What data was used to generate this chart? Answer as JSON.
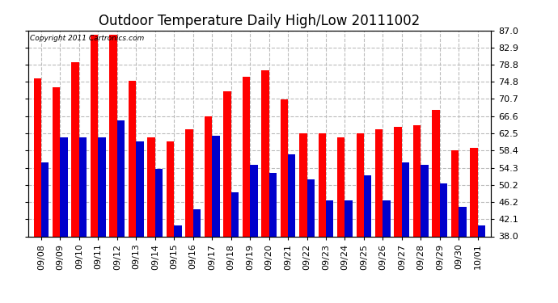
{
  "title": "Outdoor Temperature Daily High/Low 20111002",
  "copyright": "Copyright 2011 Cartronics.com",
  "dates": [
    "09/08",
    "09/09",
    "09/10",
    "09/11",
    "09/12",
    "09/13",
    "09/14",
    "09/15",
    "09/16",
    "09/17",
    "09/18",
    "09/19",
    "09/20",
    "09/21",
    "09/22",
    "09/23",
    "09/24",
    "09/25",
    "09/26",
    "09/27",
    "09/28",
    "09/29",
    "09/30",
    "10/01"
  ],
  "highs": [
    75.5,
    73.5,
    79.5,
    86.0,
    86.0,
    75.0,
    61.5,
    60.5,
    63.5,
    66.5,
    72.5,
    76.0,
    77.5,
    70.5,
    62.5,
    62.5,
    61.5,
    62.5,
    63.5,
    64.0,
    64.5,
    68.0,
    58.5,
    59.0
  ],
  "lows": [
    55.5,
    61.5,
    61.5,
    61.5,
    65.5,
    60.5,
    54.0,
    40.5,
    44.5,
    62.0,
    48.5,
    55.0,
    53.0,
    57.5,
    51.5,
    46.5,
    46.5,
    52.5,
    46.5,
    55.5,
    55.0,
    50.5,
    45.0,
    40.5
  ],
  "high_color": "#ff0000",
  "low_color": "#0000cc",
  "ylim_min": 38.0,
  "ylim_max": 87.0,
  "yticks": [
    38.0,
    42.1,
    46.2,
    50.2,
    54.3,
    58.4,
    62.5,
    66.6,
    70.7,
    74.8,
    78.8,
    82.9,
    87.0
  ],
  "background_color": "#ffffff",
  "grid_color": "#bbbbbb",
  "title_fontsize": 12,
  "tick_fontsize": 8,
  "bar_width": 0.4,
  "fig_width": 6.9,
  "fig_height": 3.75,
  "dpi": 100
}
